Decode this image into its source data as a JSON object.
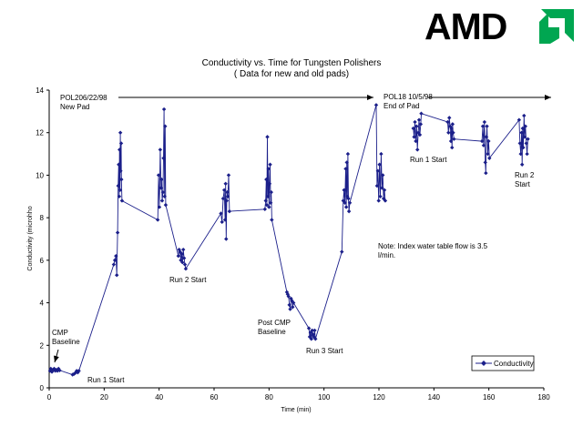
{
  "brand": {
    "logo_text": "AMD",
    "logo_color": "#000000",
    "mark_color": "#00a651"
  },
  "chart_data": {
    "type": "line",
    "title": "Conductivity vs. Time for Tungsten Polishers",
    "subtitle": "( Data for new and old pads)",
    "xlabel": "Time (min)",
    "ylabel": "Conductivity (microhho",
    "xlim": [
      0,
      180
    ],
    "ylim": [
      0,
      14
    ],
    "xticks": [
      0,
      20,
      40,
      60,
      80,
      100,
      120,
      140,
      160,
      180
    ],
    "yticks": [
      0,
      2,
      4,
      6,
      8,
      10,
      12,
      14
    ],
    "grid": false,
    "legend_position": "bottom-right",
    "line_color": "#1b1f8a",
    "series": [
      {
        "name": "Conductivity",
        "segments": [
          [
            [
              0.3,
              0.8
            ],
            [
              0.6,
              0.9
            ],
            [
              1,
              0.75
            ],
            [
              1.4,
              0.85
            ],
            [
              1.8,
              0.9
            ],
            [
              2.2,
              0.8
            ],
            [
              2.6,
              0.85
            ],
            [
              3,
              0.8
            ],
            [
              3.4,
              0.9
            ],
            [
              3.8,
              0.82
            ],
            [
              8.5,
              0.62
            ],
            [
              9,
              0.65
            ],
            [
              9.5,
              0.7
            ],
            [
              10,
              0.8
            ],
            [
              10.4,
              0.72
            ],
            [
              10.8,
              0.8
            ],
            [
              23.5,
              5.8
            ],
            [
              23.9,
              6.0
            ],
            [
              24.3,
              6.2
            ],
            [
              24.6,
              5.3
            ],
            [
              24.9,
              7.3
            ],
            [
              25.1,
              9.5
            ],
            [
              25.3,
              10.5
            ],
            [
              25.5,
              9.0
            ],
            [
              25.6,
              11.2
            ],
            [
              25.8,
              9.3
            ],
            [
              25.9,
              12.0
            ],
            [
              26.0,
              10.2
            ],
            [
              26.2,
              11.5
            ],
            [
              26.3,
              9.8
            ],
            [
              26.5,
              8.8
            ],
            [
              39.5,
              7.9
            ],
            [
              39.8,
              10.0
            ],
            [
              40.1,
              8.5
            ],
            [
              40.4,
              11.2
            ],
            [
              40.7,
              9.4
            ],
            [
              40.9,
              9.8
            ],
            [
              41.1,
              8.8
            ],
            [
              41.4,
              9.2
            ],
            [
              41.6,
              10.8
            ],
            [
              41.8,
              13.1
            ],
            [
              42.0,
              9.0
            ],
            [
              42.2,
              12.3
            ],
            [
              42.4,
              8.6
            ],
            [
              47.0,
              6.2
            ],
            [
              47.3,
              6.5
            ],
            [
              47.6,
              6.4
            ],
            [
              47.9,
              6.0
            ],
            [
              48.2,
              6.3
            ],
            [
              48.5,
              5.9
            ],
            [
              48.8,
              6.5
            ],
            [
              49.1,
              6.1
            ],
            [
              49.4,
              5.8
            ],
            [
              49.7,
              5.6
            ],
            [
              62.5,
              8.2
            ],
            [
              62.9,
              7.8
            ],
            [
              63.3,
              8.9
            ],
            [
              63.7,
              9.3
            ],
            [
              64.0,
              7.9
            ],
            [
              64.2,
              9.6
            ],
            [
              64.4,
              7.0
            ],
            [
              64.6,
              8.8
            ],
            [
              64.8,
              9.2
            ],
            [
              65.0,
              9.0
            ],
            [
              65.3,
              10.0
            ],
            [
              65.6,
              8.3
            ],
            [
              78.5,
              8.4
            ],
            [
              78.8,
              8.8
            ],
            [
              79.0,
              9.8
            ],
            [
              79.2,
              8.6
            ],
            [
              79.4,
              11.8
            ],
            [
              79.6,
              9.0
            ],
            [
              79.8,
              10.3
            ],
            [
              80.0,
              8.5
            ],
            [
              80.2,
              9.6
            ],
            [
              80.4,
              10.5
            ],
            [
              80.6,
              8.7
            ],
            [
              80.8,
              9.2
            ],
            [
              81.0,
              7.9
            ],
            [
              86.5,
              4.5
            ],
            [
              86.8,
              4.4
            ],
            [
              87.1,
              4.3
            ],
            [
              87.4,
              3.9
            ],
            [
              87.7,
              3.7
            ],
            [
              88.0,
              4.2
            ],
            [
              88.3,
              4.1
            ],
            [
              88.6,
              3.8
            ],
            [
              88.9,
              4.0
            ],
            [
              94.5,
              2.8
            ],
            [
              94.8,
              2.4
            ],
            [
              95.1,
              2.6
            ],
            [
              95.4,
              2.3
            ],
            [
              95.7,
              2.7
            ],
            [
              96.0,
              2.5
            ],
            [
              96.3,
              2.4
            ],
            [
              96.6,
              2.7
            ],
            [
              96.9,
              2.3
            ],
            [
              106.5,
              6.4
            ],
            [
              107.0,
              8.8
            ],
            [
              107.3,
              9.3
            ],
            [
              107.6,
              8.7
            ],
            [
              107.9,
              10.3
            ],
            [
              108.1,
              8.5
            ],
            [
              108.3,
              10.6
            ],
            [
              108.5,
              9.0
            ],
            [
              108.7,
              11.0
            ],
            [
              108.9,
              8.9
            ],
            [
              109.1,
              8.3
            ],
            [
              109.4,
              8.7
            ],
            [
              119.0,
              13.3
            ],
            [
              119.3,
              9.5
            ],
            [
              119.6,
              10.2
            ],
            [
              119.9,
              8.8
            ],
            [
              120.2,
              10.5
            ],
            [
              120.5,
              9.0
            ],
            [
              120.8,
              11.0
            ],
            [
              121.1,
              9.4
            ],
            [
              121.4,
              10.0
            ],
            [
              121.7,
              8.9
            ],
            [
              122.0,
              9.3
            ],
            [
              122.3,
              8.8
            ]
          ],
          [
            [
              132.5,
              12.2
            ],
            [
              132.8,
              11.8
            ],
            [
              133.1,
              12.5
            ],
            [
              133.4,
              11.6
            ],
            [
              133.7,
              12.3
            ],
            [
              134.0,
              11.2
            ],
            [
              134.3,
              12.0
            ],
            [
              134.6,
              12.6
            ],
            [
              134.9,
              11.9
            ],
            [
              135.2,
              12.4
            ],
            [
              135.4,
              12.9
            ],
            [
              145.0,
              12.5
            ],
            [
              145.3,
              12.0
            ],
            [
              145.6,
              12.7
            ],
            [
              145.9,
              12.3
            ],
            [
              146.2,
              11.6
            ],
            [
              146.4,
              12.2
            ],
            [
              146.6,
              11.3
            ],
            [
              146.8,
              12.4
            ],
            [
              147.0,
              12.0
            ],
            [
              147.3,
              11.7
            ],
            [
              157.5,
              11.6
            ],
            [
              157.8,
              12.3
            ],
            [
              158.1,
              11.4
            ],
            [
              158.4,
              12.5
            ],
            [
              158.7,
              10.6
            ],
            [
              158.9,
              10.1
            ],
            [
              159.1,
              11.8
            ],
            [
              159.3,
              12.3
            ],
            [
              159.6,
              11.0
            ],
            [
              159.9,
              11.6
            ],
            [
              160.2,
              10.8
            ],
            [
              171.0,
              12.6
            ],
            [
              171.3,
              11.5
            ],
            [
              171.6,
              11.0
            ],
            [
              171.9,
              12.0
            ],
            [
              172.1,
              10.5
            ],
            [
              172.3,
              12.2
            ],
            [
              172.5,
              11.3
            ],
            [
              172.8,
              12.8
            ],
            [
              173.0,
              11.8
            ],
            [
              173.3,
              12.3
            ],
            [
              173.6,
              11.5
            ],
            [
              173.9,
              11.0
            ],
            [
              174.2,
              11.7
            ]
          ]
        ]
      }
    ],
    "annotations": {
      "pol206": [
        "POL206/22/98",
        "New Pad"
      ],
      "pol18": [
        "POL18 10/5/98",
        "End of Pad"
      ],
      "cmp_baseline": [
        "CMP",
        "Baseline"
      ],
      "run1_low": [
        "Run 1 Start"
      ],
      "run2_low": [
        "Run 2 Start"
      ],
      "post_cmp": [
        "Post CMP",
        "Baseline"
      ],
      "run3": [
        "Run 3 Start"
      ],
      "run1_high": [
        "Run 1 Start"
      ],
      "run2_high": [
        "Run 2",
        "Start"
      ],
      "note": [
        "Note:  Index water table flow is 3.5",
        "l/min."
      ]
    },
    "legend_label": "Conductivity"
  }
}
